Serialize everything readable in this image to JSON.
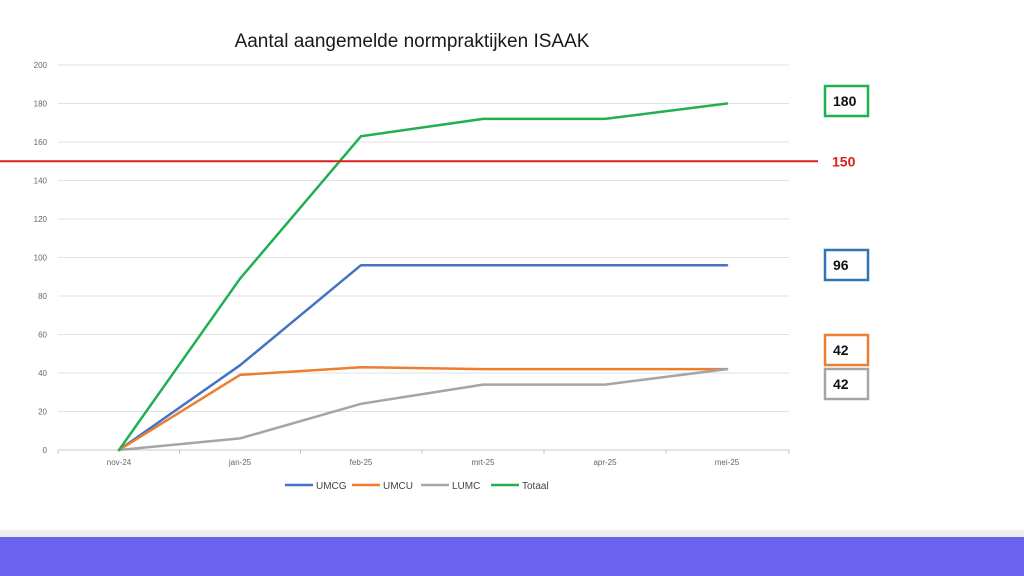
{
  "chart_data": {
    "type": "line",
    "title": "Aantal aangemelde normpraktijken ISAAK",
    "xlabel": "",
    "ylabel": "",
    "categories": [
      "nov-24",
      "jan-25",
      "feb-25",
      "mrt-25",
      "apr-25",
      "mei-25"
    ],
    "ylim": [
      0,
      200
    ],
    "yticks": [
      0,
      20,
      40,
      60,
      80,
      100,
      120,
      140,
      160,
      180,
      200
    ],
    "grid": true,
    "legend_position": "bottom",
    "series": [
      {
        "name": "UMCG",
        "color": "#4472c4",
        "values": [
          0,
          44,
          96,
          96,
          96,
          96
        ]
      },
      {
        "name": "UMCU",
        "color": "#ed7d31",
        "values": [
          0,
          39,
          43,
          42,
          42,
          42
        ]
      },
      {
        "name": "LUMC",
        "color": "#a5a5a5",
        "values": [
          0,
          6,
          24,
          34,
          34,
          42
        ]
      },
      {
        "name": "Totaal",
        "color": "#1fb050",
        "values": [
          0,
          89,
          163,
          172,
          172,
          180
        ]
      }
    ],
    "reference_line": {
      "value": 150,
      "label": "150",
      "color": "#d9211f"
    },
    "callouts": [
      {
        "label": "180",
        "value": 180,
        "border_color": "#1fb050"
      },
      {
        "label": "96",
        "value": 96,
        "border_color": "#2e75b6"
      },
      {
        "label": "42",
        "value": 42,
        "border_color": "#ed7d31"
      },
      {
        "label": "42",
        "value": 42,
        "border_color": "#a5a5a5"
      }
    ]
  }
}
